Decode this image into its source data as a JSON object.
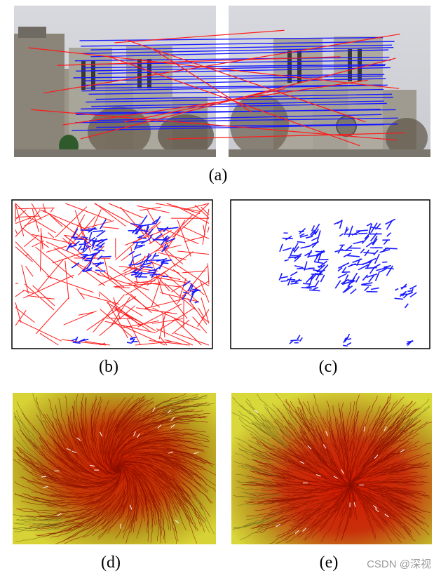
{
  "figure": {
    "captions": {
      "a": "(a)",
      "b": "(b)",
      "c": "(c)",
      "d": "(d)",
      "e": "(e)"
    },
    "watermark": "CSDN @深视"
  },
  "colors": {
    "outlier": "#ff1a1a",
    "inlier": "#1a1aff",
    "flow_low": "#d7d235",
    "flow_high": "#cc1100",
    "frame": "#000000"
  }
}
